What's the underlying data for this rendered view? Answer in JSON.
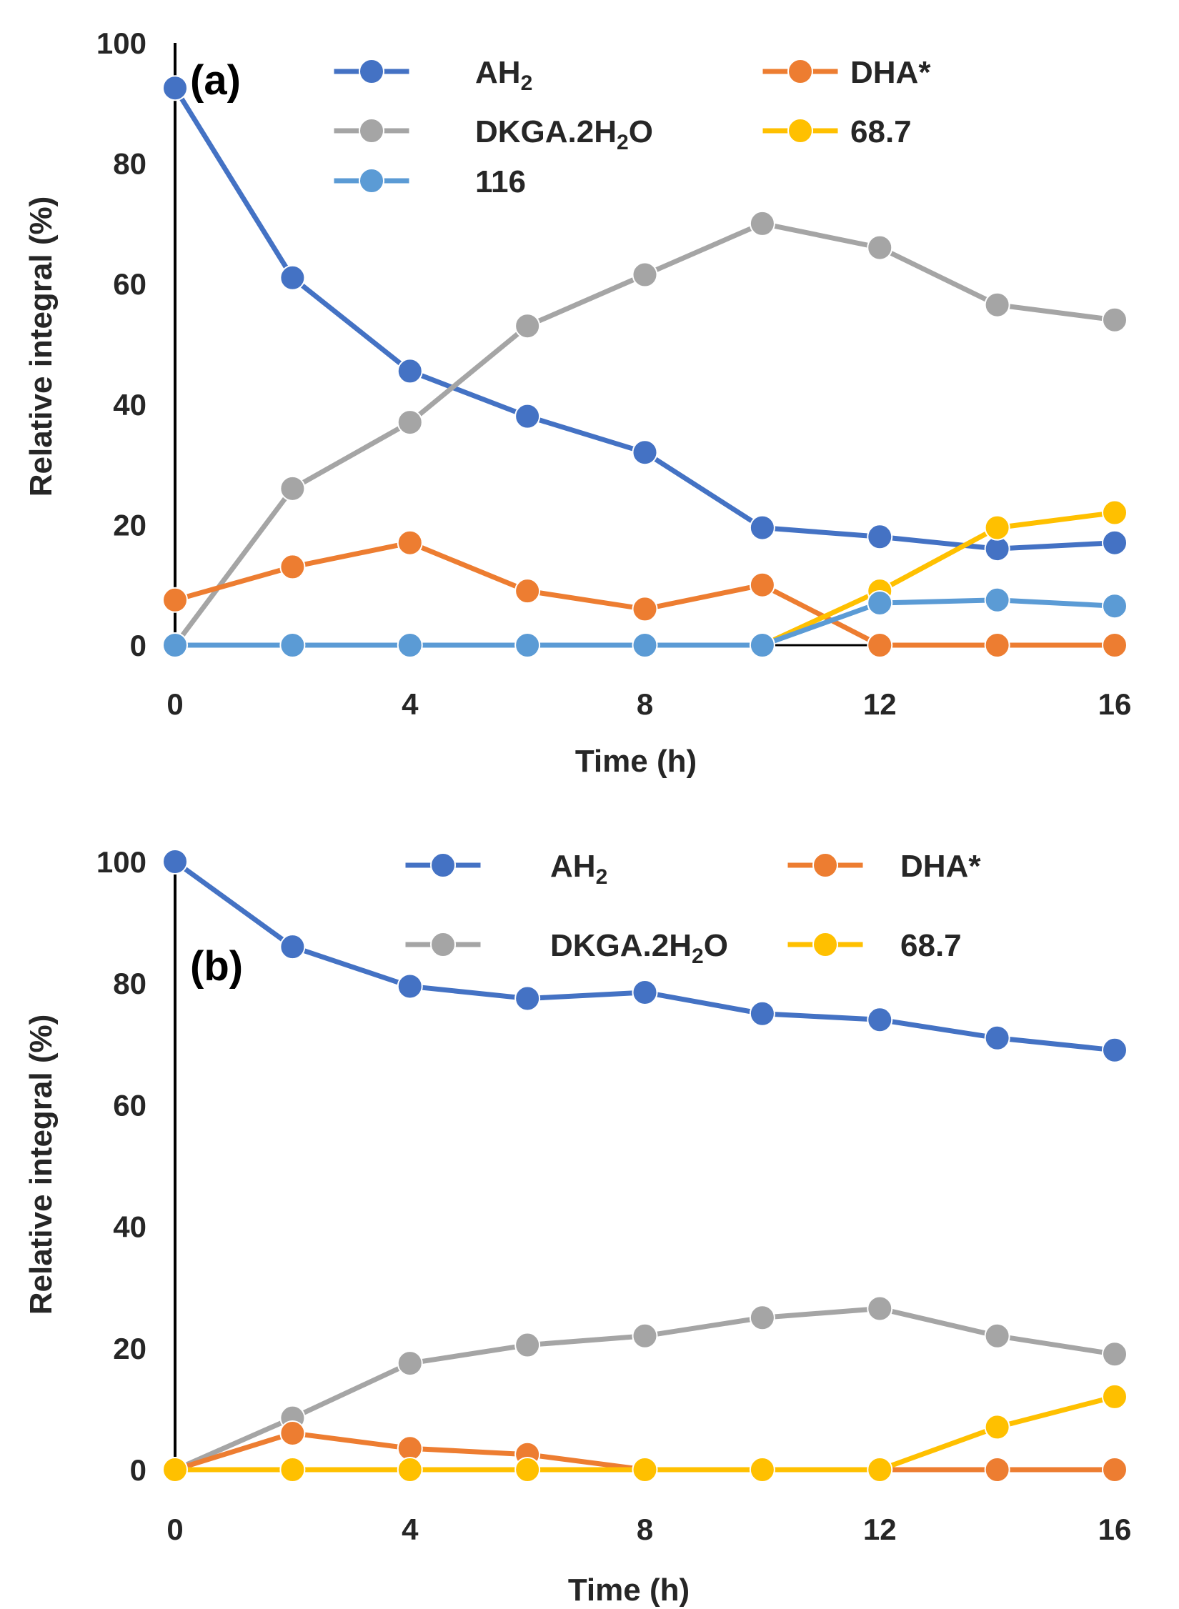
{
  "chart_data": [
    {
      "type": "line",
      "panel_label": "(a)",
      "x": [
        0,
        2,
        4,
        6,
        8,
        10,
        12,
        14,
        16
      ],
      "xlabel": "Time (h)",
      "ylabel": "Relative integral (%)",
      "xlim": [
        0,
        16
      ],
      "ylim": [
        0,
        100
      ],
      "xticks": [
        "0",
        "4",
        "8",
        "12",
        "16"
      ],
      "yticks": [
        "0",
        "20",
        "40",
        "60",
        "80",
        "100"
      ],
      "legend": [
        {
          "main": "AH",
          "sub": "2",
          "rest": ""
        },
        {
          "main": "DHA*",
          "sub": "",
          "rest": ""
        },
        {
          "main": "DKGA.2H",
          "sub": "2",
          "rest": "O"
        },
        {
          "main": "68.7",
          "sub": "",
          "rest": ""
        },
        {
          "main": "116",
          "sub": "",
          "rest": ""
        }
      ],
      "series": [
        {
          "name": "AH2",
          "color": "#4472C4",
          "values": [
            92.5,
            61,
            45.5,
            38,
            32,
            19.5,
            18,
            16,
            17
          ]
        },
        {
          "name": "DKGA.2H2O",
          "color": "#A5A5A5",
          "values": [
            0,
            26,
            37,
            53,
            61.5,
            70,
            66,
            56.5,
            54
          ]
        },
        {
          "name": "DHA*",
          "color": "#ED7D31",
          "values": [
            7.5,
            13,
            17,
            9,
            6,
            10,
            0,
            0,
            0
          ]
        },
        {
          "name": "68.7",
          "color": "#FFC000",
          "values": [
            null,
            null,
            null,
            null,
            null,
            0,
            9,
            19.5,
            22
          ]
        },
        {
          "name": "116",
          "color": "#5B9BD5",
          "values": [
            0,
            0,
            0,
            0,
            0,
            0,
            7,
            7.5,
            6.5
          ]
        }
      ]
    },
    {
      "type": "line",
      "panel_label": "(b)",
      "x": [
        0,
        2,
        4,
        6,
        8,
        10,
        12,
        14,
        16
      ],
      "xlabel": "Time (h)",
      "ylabel": "Relative integral (%)",
      "xlim": [
        0,
        16
      ],
      "ylim": [
        0,
        100
      ],
      "xticks": [
        "0",
        "4",
        "8",
        "12",
        "16"
      ],
      "yticks": [
        "0",
        "20",
        "40",
        "60",
        "80",
        "100"
      ],
      "legend": [
        {
          "main": "AH",
          "sub": "2",
          "rest": ""
        },
        {
          "main": "DHA*",
          "sub": "",
          "rest": ""
        },
        {
          "main": "DKGA.2H",
          "sub": "2",
          "rest": "O"
        },
        {
          "main": "68.7",
          "sub": "",
          "rest": ""
        }
      ],
      "series": [
        {
          "name": "AH2",
          "color": "#4472C4",
          "values": [
            100,
            86,
            79.5,
            77.5,
            78.5,
            75,
            74,
            71,
            69
          ]
        },
        {
          "name": "DKGA.2H2O",
          "color": "#A5A5A5",
          "values": [
            0,
            8.5,
            17.5,
            20.5,
            22,
            25,
            26.5,
            22,
            19
          ]
        },
        {
          "name": "DHA*",
          "color": "#ED7D31",
          "values": [
            0,
            6,
            3.5,
            2.5,
            0,
            0,
            0,
            0,
            0
          ]
        },
        {
          "name": "68.7",
          "color": "#FFC000",
          "values": [
            0,
            0,
            0,
            0,
            0,
            0,
            0,
            7,
            12
          ]
        }
      ]
    }
  ]
}
